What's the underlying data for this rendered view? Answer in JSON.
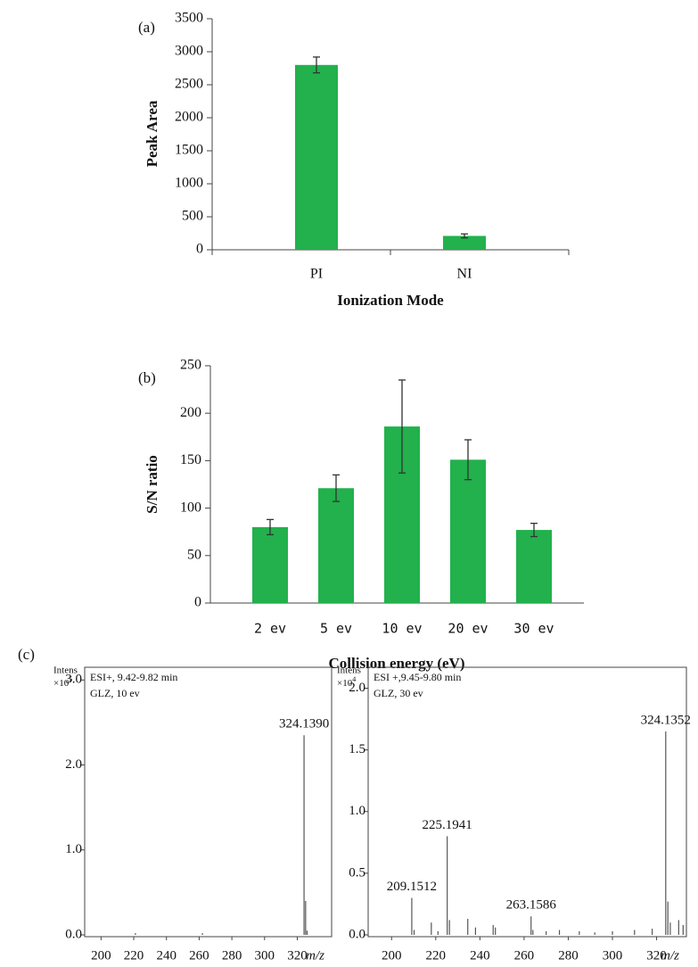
{
  "chart_data": [
    {
      "type": "bar",
      "panel_label": "(a)",
      "y_label": "Peak Area",
      "x_label": "Ionization Mode",
      "categories": [
        "PI",
        "NI"
      ],
      "values": [
        2800,
        210
      ],
      "errors": [
        120,
        30
      ],
      "color": "#22b14c",
      "ylim": [
        0,
        3500
      ],
      "yticks": [
        0,
        500,
        1000,
        1500,
        2000,
        2500,
        3000,
        3500
      ]
    },
    {
      "type": "bar",
      "panel_label": "(b)",
      "y_label": "S/N ratio",
      "x_label": "Collision energy (eV)",
      "categories": [
        "2 ev",
        "5 ev",
        "10 ev",
        "20 ev",
        "30 ev"
      ],
      "values": [
        80,
        121,
        186,
        151,
        77
      ],
      "errors": [
        8,
        14,
        49,
        21,
        7
      ],
      "color": "#22b14c",
      "ylim": [
        0,
        250
      ],
      "yticks": [
        0,
        50,
        100,
        150,
        200,
        250
      ]
    },
    {
      "type": "spectrum",
      "panel_label": "(c)",
      "y_label": "Intens",
      "y_multiplier": "×10",
      "y_exponent": 5,
      "info": [
        "ESI+, 9.42-9.82 min",
        "GLZ, 10 ev"
      ],
      "x_label": "m/z",
      "x": [
        221,
        262,
        324.139,
        325.1,
        326.0
      ],
      "values": [
        0.02,
        0.02,
        2.35,
        0.4,
        0.05
      ],
      "color": "#555555",
      "peak_labels": [
        {
          "value": 324.139,
          "label": "324.1390"
        }
      ],
      "xlim": [
        190,
        341
      ],
      "xticks": [
        200,
        220,
        240,
        260,
        280,
        300,
        320
      ],
      "ylim": [
        0,
        3.15
      ],
      "yticks": [
        {
          "value": 0,
          "label": "0.0"
        },
        {
          "value": 1,
          "label": "1.0"
        },
        {
          "value": 2,
          "label": "2.0"
        },
        {
          "value": 3,
          "label": "3.0"
        }
      ]
    },
    {
      "type": "spectrum",
      "y_label": "Intens",
      "y_multiplier": "×10",
      "y_exponent": 4,
      "info": [
        "ESI +,9.45-9.80 min",
        "GLZ, 30 ev"
      ],
      "x_label": "m/z",
      "x": [
        209.1512,
        210.2,
        218,
        221,
        225.1941,
        226.2,
        234.5,
        238,
        246,
        247,
        263.1586,
        264,
        270,
        276,
        285,
        292,
        300,
        310,
        318,
        324.1352,
        325.1,
        326.2,
        330,
        332
      ],
      "values": [
        0.3,
        0.04,
        0.1,
        0.03,
        0.8,
        0.12,
        0.13,
        0.06,
        0.08,
        0.06,
        0.15,
        0.04,
        0.03,
        0.04,
        0.03,
        0.02,
        0.03,
        0.04,
        0.05,
        1.65,
        0.27,
        0.1,
        0.12,
        0.08
      ],
      "color": "#555555",
      "peak_labels": [
        {
          "value": 209.1512,
          "label": "209.1512"
        },
        {
          "value": 225.1941,
          "label": "225.1941"
        },
        {
          "value": 263.1586,
          "label": "263.1586"
        },
        {
          "value": 324.1352,
          "label": "324.1352"
        }
      ],
      "xlim": [
        189.4,
        333.5
      ],
      "xticks": [
        200,
        220,
        240,
        260,
        280,
        300,
        320
      ],
      "ylim": [
        0,
        2.17
      ],
      "yticks": [
        {
          "value": 0,
          "label": "0.0"
        },
        {
          "value": 0.5,
          "label": "0.5"
        },
        {
          "value": 1,
          "label": "1.0"
        },
        {
          "value": 1.5,
          "label": "1.5"
        },
        {
          "value": 2,
          "label": "2.0"
        }
      ]
    }
  ]
}
